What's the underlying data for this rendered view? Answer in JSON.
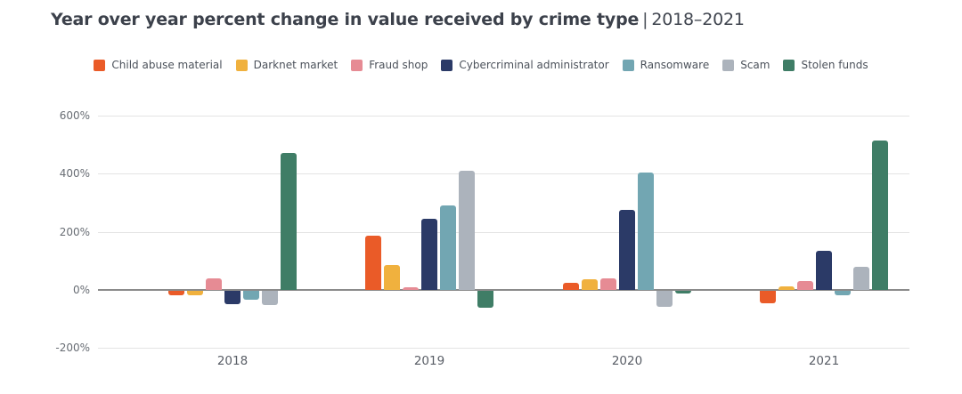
{
  "title": {
    "main": "Year over year percent change in value received by crime type",
    "separator": "|",
    "period": "2018–2021"
  },
  "chart_data": {
    "type": "bar",
    "title": "Year over year percent change in value received by crime type | 2018–2021",
    "categories": [
      "2018",
      "2019",
      "2020",
      "2021"
    ],
    "series": [
      {
        "name": "Child abuse material",
        "color": "#EA5B28",
        "values": [
          -15,
          185,
          25,
          -42
        ]
      },
      {
        "name": "Darknet market",
        "color": "#F0B13E",
        "values": [
          -15,
          85,
          35,
          12
        ]
      },
      {
        "name": "Fraud shop",
        "color": "#E68B94",
        "values": [
          40,
          8,
          38,
          30
        ]
      },
      {
        "name": "Cybercriminal administrator",
        "color": "#2B3A67",
        "values": [
          -45,
          245,
          275,
          135
        ]
      },
      {
        "name": "Ransomware",
        "color": "#72A6B2",
        "values": [
          -30,
          290,
          405,
          -15
        ]
      },
      {
        "name": "Scam",
        "color": "#ACB3BC",
        "values": [
          -48,
          410,
          -55,
          80
        ]
      },
      {
        "name": "Stolen funds",
        "color": "#3F7D66",
        "values": [
          470,
          -60,
          -8,
          515
        ]
      }
    ],
    "xlabel": "",
    "ylabel": "",
    "y_tick_labels": [
      "600%",
      "400%",
      "200%",
      "0%",
      "-200%"
    ],
    "y_tick_values": [
      600,
      400,
      200,
      0,
      -200
    ],
    "ylim": [
      -200,
      600
    ],
    "grid": true,
    "legend_position": "top",
    "unit": "percent"
  }
}
